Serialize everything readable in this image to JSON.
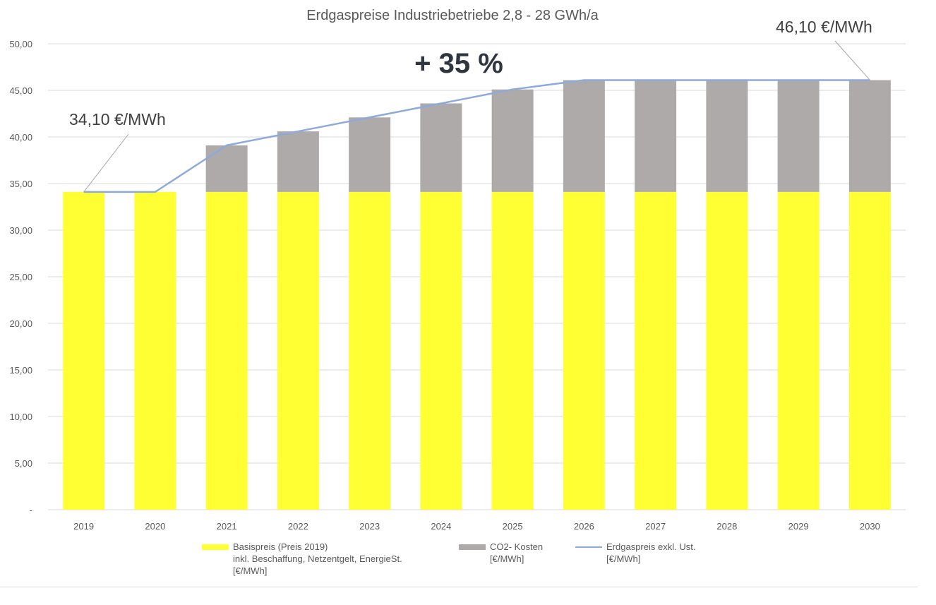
{
  "chart_data": {
    "type": "bar",
    "title": "Erdgaspreise Industriebetriebe  2,8 - 28 GWh/a",
    "categories": [
      "2019",
      "2020",
      "2021",
      "2022",
      "2023",
      "2024",
      "2025",
      "2026",
      "2027",
      "2028",
      "2029",
      "2030"
    ],
    "y_ticks": [
      "-",
      "5,00",
      "10,00",
      "15,00",
      "20,00",
      "25,00",
      "30,00",
      "35,00",
      "40,00",
      "45,00",
      "50,00"
    ],
    "ylim": [
      0,
      50
    ],
    "grid": true,
    "legend_position": "bottom",
    "series": [
      {
        "name": "Basispreis (Preis 2019)\ninkl. Beschaffung, Netzentgelt, EnergieSt.\n[€/MWh]",
        "kind": "bar",
        "color": "#ffff33",
        "values": [
          34.1,
          34.1,
          34.1,
          34.1,
          34.1,
          34.1,
          34.1,
          34.1,
          34.1,
          34.1,
          34.1,
          34.1
        ]
      },
      {
        "name": "CO2- Kosten\n[€/MWh]",
        "kind": "bar",
        "color": "#aeaaaa",
        "values": [
          0,
          0,
          5.0,
          6.5,
          8.0,
          9.5,
          11.0,
          12.0,
          12.0,
          12.0,
          12.0,
          12.0
        ]
      },
      {
        "name": "Erdgaspreis exkl. Ust.\n[€/MWh]",
        "kind": "line",
        "color": "#8eaadb",
        "values": [
          34.1,
          34.1,
          39.1,
          40.6,
          42.1,
          43.6,
          45.1,
          46.1,
          46.1,
          46.1,
          46.1,
          46.1
        ]
      }
    ],
    "annotations": [
      {
        "text": "34,10  €/MWh",
        "category": "2019",
        "value": 34.1
      },
      {
        "text": "46,10 €/MWh",
        "category": "2030",
        "value": 46.1
      },
      {
        "text": "+ 35 %"
      }
    ]
  }
}
